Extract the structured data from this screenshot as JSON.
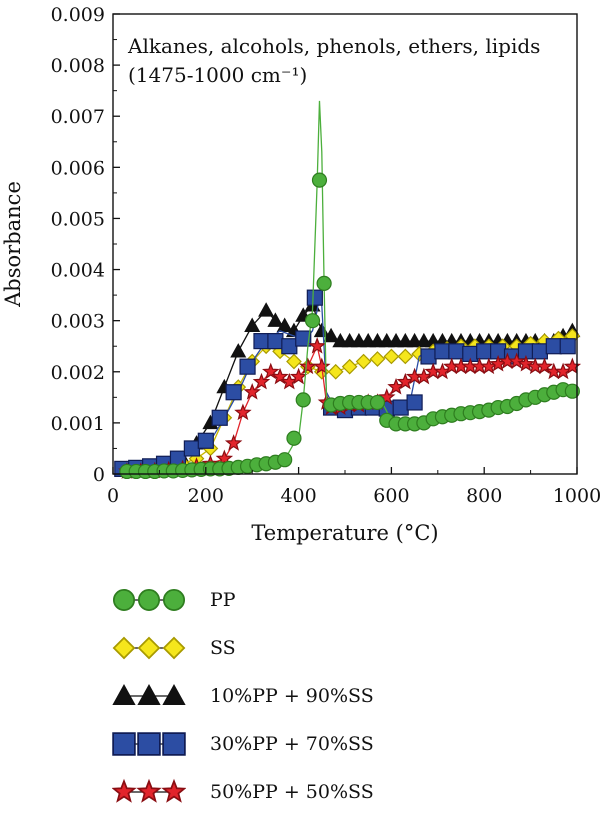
{
  "chart_data": {
    "type": "line",
    "annotation": [
      "Alkanes, alcohols, phenols, ethers, lipids",
      "(1475-1000 cm⁻¹)"
    ],
    "xlabel": "Temperature (°C)",
    "ylabel": "Absorbance",
    "xlim": [
      0,
      1000
    ],
    "ylim": [
      0,
      0.009
    ],
    "xticks": [
      0,
      200,
      400,
      600,
      800,
      1000
    ],
    "yticks": [
      0,
      0.001,
      0.002,
      0.003,
      0.004,
      0.005,
      0.006,
      0.007,
      0.008,
      0.009
    ],
    "ytick_labels": [
      "0",
      "0.001",
      "0.002",
      "0.003",
      "0.004",
      "0.005",
      "0.006",
      "0.007",
      "0.008",
      "0.009"
    ],
    "grid": false,
    "legend_position": "below",
    "series": [
      {
        "name": "PP",
        "marker": "circle",
        "color": "#4caf3c",
        "edge": "#2e7d1f",
        "line_color": "#4caf3c",
        "x": [
          30,
          50,
          70,
          90,
          110,
          130,
          150,
          170,
          190,
          210,
          230,
          250,
          270,
          290,
          310,
          330,
          350,
          370,
          390,
          400,
          410,
          420,
          430,
          440,
          445,
          450,
          455,
          460,
          470,
          480,
          500,
          520,
          540,
          560,
          580,
          600,
          620,
          640,
          660,
          680,
          700,
          720,
          740,
          760,
          780,
          800,
          820,
          840,
          860,
          880,
          900,
          920,
          940,
          960,
          980,
          990
        ],
        "y": [
          5e-05,
          5e-05,
          5e-05,
          5e-05,
          6e-05,
          6e-05,
          7e-05,
          8e-05,
          9e-05,
          0.0001,
          0.0001,
          0.00011,
          0.00013,
          0.00015,
          0.00018,
          0.0002,
          0.00023,
          0.00028,
          0.0006,
          0.0007,
          0.00145,
          0.0025,
          0.0032,
          0.0057,
          0.0073,
          0.0063,
          0.0037,
          0.0015,
          0.00135,
          0.00138,
          0.00138,
          0.0014,
          0.0014,
          0.0014,
          0.0014,
          0.00105,
          0.00098,
          0.00098,
          0.00098,
          0.001,
          0.00108,
          0.00112,
          0.00115,
          0.00118,
          0.0012,
          0.00122,
          0.00125,
          0.0013,
          0.00132,
          0.00138,
          0.00145,
          0.0015,
          0.00155,
          0.0016,
          0.00165,
          0.00162
        ],
        "marker_x": [
          30,
          50,
          70,
          90,
          110,
          130,
          150,
          170,
          190,
          210,
          230,
          250,
          270,
          290,
          310,
          330,
          350,
          370,
          390,
          410,
          430,
          445,
          455,
          470,
          490,
          510,
          530,
          550,
          570,
          590,
          610,
          630,
          650,
          670,
          690,
          710,
          730,
          750,
          770,
          790,
          810,
          830,
          850,
          870,
          890,
          910,
          930,
          950,
          970,
          990
        ],
        "marker_y": [
          5e-05,
          5e-05,
          5e-05,
          5e-05,
          6e-05,
          6e-05,
          7e-05,
          8e-05,
          9e-05,
          0.0001,
          0.0001,
          0.00011,
          0.00013,
          0.00015,
          0.00018,
          0.0002,
          0.00023,
          0.00028,
          0.0007,
          0.00145,
          0.003,
          0.00575,
          0.00373,
          0.00135,
          0.00138,
          0.0014,
          0.0014,
          0.0014,
          0.0014,
          0.00105,
          0.00098,
          0.00098,
          0.00098,
          0.001,
          0.00108,
          0.00112,
          0.00115,
          0.00118,
          0.0012,
          0.00122,
          0.00125,
          0.0013,
          0.00132,
          0.00138,
          0.00145,
          0.0015,
          0.00155,
          0.0016,
          0.00165,
          0.00162
        ]
      },
      {
        "name": "SS",
        "marker": "diamond",
        "color": "#f5e61c",
        "edge": "#a89a00",
        "line_color": "#c9b800",
        "x": [
          30,
          60,
          90,
          120,
          150,
          180,
          210,
          240,
          270,
          300,
          330,
          360,
          390,
          420,
          450,
          480,
          510,
          540,
          570,
          600,
          630,
          660,
          690,
          720,
          750,
          780,
          810,
          840,
          870,
          900,
          930,
          960,
          990
        ],
        "y": [
          0.0001,
          0.0001,
          0.00012,
          0.00015,
          0.0002,
          0.0003,
          0.0005,
          0.0011,
          0.0017,
          0.0022,
          0.0025,
          0.0024,
          0.0022,
          0.0021,
          0.002,
          0.002,
          0.0021,
          0.0022,
          0.00225,
          0.0023,
          0.0023,
          0.00235,
          0.0024,
          0.00245,
          0.0025,
          0.0025,
          0.0025,
          0.0025,
          0.0025,
          0.00255,
          0.0026,
          0.00265,
          0.0027
        ]
      },
      {
        "name": "10%PP + 90%SS",
        "marker": "triangle",
        "color": "#111111",
        "edge": "#111111",
        "line_color": "#111111",
        "x": [
          30,
          60,
          90,
          120,
          150,
          180,
          210,
          240,
          270,
          300,
          330,
          350,
          370,
          390,
          410,
          430,
          450,
          470,
          490,
          510,
          530,
          550,
          570,
          590,
          610,
          630,
          650,
          670,
          690,
          710,
          730,
          750,
          770,
          790,
          810,
          830,
          850,
          870,
          890,
          910,
          930,
          950,
          970,
          990
        ],
        "y": [
          0.0001,
          0.0001,
          0.00012,
          0.00015,
          0.0003,
          0.0006,
          0.001,
          0.0017,
          0.0024,
          0.0029,
          0.0032,
          0.003,
          0.0029,
          0.0028,
          0.0031,
          0.0033,
          0.0028,
          0.0027,
          0.0026,
          0.0026,
          0.0026,
          0.0026,
          0.0026,
          0.0026,
          0.0026,
          0.0026,
          0.0026,
          0.0026,
          0.0026,
          0.0026,
          0.0026,
          0.0026,
          0.0026,
          0.0026,
          0.0026,
          0.0026,
          0.0026,
          0.0026,
          0.0026,
          0.0026,
          0.0026,
          0.0026,
          0.0027,
          0.0028
        ]
      },
      {
        "name": "30%PP + 70%SS",
        "marker": "square",
        "color": "#2c4da3",
        "edge": "#101d55",
        "line_color": "#2c4da3",
        "x": [
          30,
          60,
          90,
          120,
          150,
          180,
          210,
          240,
          270,
          300,
          330,
          360,
          390,
          410,
          430,
          440,
          445,
          450,
          460,
          480,
          500,
          520,
          540,
          560,
          580,
          600,
          620,
          640,
          660,
          680,
          700,
          720,
          740,
          760,
          780,
          800,
          820,
          840,
          860,
          880,
          900,
          920,
          940,
          960,
          980
        ],
        "y": [
          0.0001,
          0.00012,
          0.00015,
          0.0002,
          0.0003,
          0.0005,
          0.00065,
          0.0011,
          0.0016,
          0.0022,
          0.0026,
          0.0028,
          0.0027,
          0.0026,
          0.0028,
          0.0032,
          0.0035,
          0.0033,
          0.0016,
          0.00125,
          0.0013,
          0.00125,
          0.0013,
          0.0013,
          0.00128,
          0.0013,
          0.0013,
          0.0014,
          0.0023,
          0.0024,
          0.0024,
          0.0024,
          0.00235,
          0.0024,
          0.0024,
          0.0024,
          0.0024,
          0.0023,
          0.0024,
          0.0024,
          0.0023,
          0.0024,
          0.0025,
          0.0025,
          0.0025
        ],
        "marker_x": [
          20,
          50,
          80,
          110,
          140,
          170,
          200,
          230,
          260,
          290,
          320,
          350,
          380,
          410,
          435,
          470,
          500,
          530,
          560,
          590,
          620,
          650,
          680,
          710,
          740,
          770,
          800,
          830,
          860,
          890,
          920,
          950,
          980
        ],
        "marker_y": [
          0.0001,
          0.00012,
          0.00015,
          0.0002,
          0.0003,
          0.0005,
          0.00065,
          0.0011,
          0.0016,
          0.0021,
          0.0026,
          0.0026,
          0.0025,
          0.00265,
          0.00345,
          0.0013,
          0.00125,
          0.0013,
          0.0013,
          0.00128,
          0.0013,
          0.0014,
          0.0023,
          0.0024,
          0.0024,
          0.00235,
          0.0024,
          0.0024,
          0.0023,
          0.0024,
          0.0024,
          0.0025,
          0.0025
        ]
      },
      {
        "name": "50%PP + 50%SS",
        "marker": "star",
        "color": "#e2242b",
        "edge": "#8a0d12",
        "line_color": "#e2242b",
        "x": [
          30,
          60,
          90,
          120,
          150,
          180,
          210,
          240,
          260,
          280,
          300,
          320,
          340,
          360,
          380,
          400,
          420,
          440,
          450,
          460,
          470,
          490,
          510,
          530,
          550,
          570,
          590,
          610,
          630,
          650,
          670,
          690,
          710,
          730,
          750,
          770,
          790,
          810,
          830,
          850,
          870,
          890,
          910,
          930,
          950,
          970,
          990
        ],
        "y": [
          5e-05,
          5e-05,
          6e-05,
          8e-05,
          0.0001,
          0.00015,
          0.0002,
          0.0003,
          0.0006,
          0.0012,
          0.0016,
          0.0018,
          0.002,
          0.0019,
          0.0018,
          0.0019,
          0.0021,
          0.0025,
          0.0021,
          0.0014,
          0.0013,
          0.0013,
          0.00135,
          0.00135,
          0.0014,
          0.0014,
          0.0015,
          0.0017,
          0.0018,
          0.0019,
          0.0019,
          0.002,
          0.002,
          0.0021,
          0.0021,
          0.0021,
          0.0021,
          0.0021,
          0.00215,
          0.0022,
          0.0022,
          0.00215,
          0.0021,
          0.0021,
          0.002,
          0.002,
          0.0021
        ]
      }
    ]
  },
  "legend": {
    "items": [
      {
        "label": "PP"
      },
      {
        "label": "SS"
      },
      {
        "label": "10%PP + 90%SS"
      },
      {
        "label": "30%PP + 70%SS"
      },
      {
        "label": "50%PP + 50%SS"
      }
    ]
  }
}
